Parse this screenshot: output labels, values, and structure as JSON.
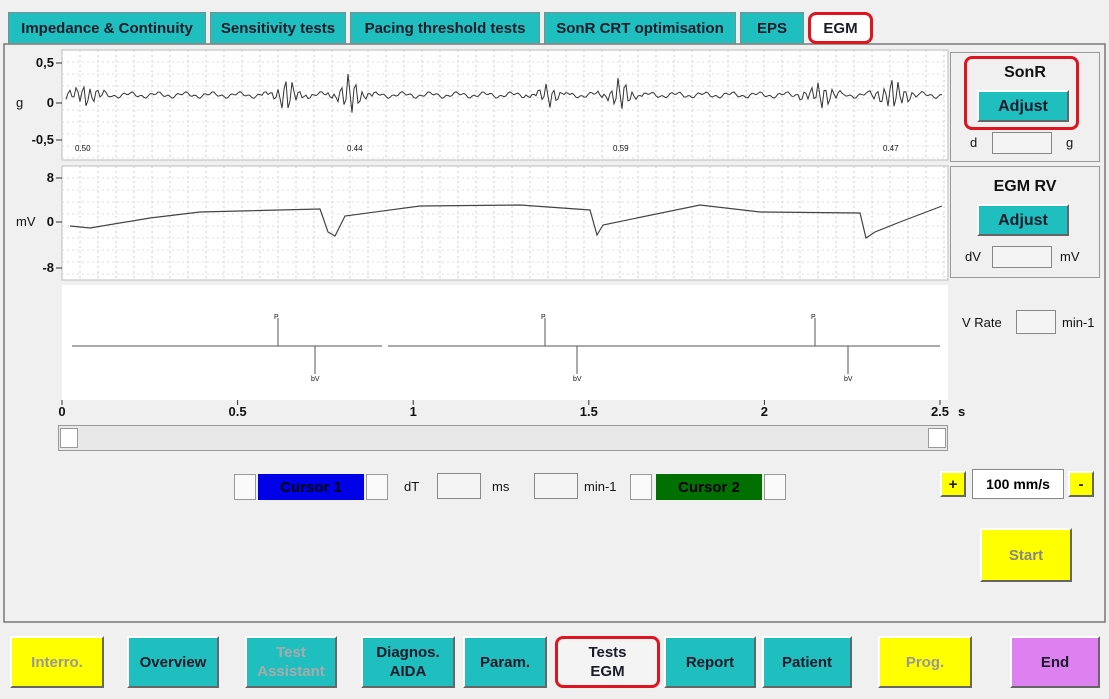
{
  "tabs": [
    "Impedance & Continuity",
    "Sensitivity tests",
    "Pacing threshold tests",
    "SonR CRT optimisation",
    "EPS",
    "EGM"
  ],
  "sonr_trace": {
    "unit": "g",
    "ticks": [
      "0,5",
      "0",
      "-0,5"
    ],
    "annotations": [
      "0.50",
      "0.44",
      "0.59",
      "0.47"
    ]
  },
  "egm_trace": {
    "unit": "mV",
    "ticks": [
      "8",
      "0",
      "-8"
    ]
  },
  "markers": {
    "labels": [
      "P",
      "bV",
      "P",
      "bV",
      "P",
      "bV"
    ]
  },
  "time_axis": {
    "ticks": [
      "0",
      "0.5",
      "1",
      "1.5",
      "2",
      "2.5"
    ],
    "unit": "s"
  },
  "sonr_panel": {
    "title": "SonR",
    "button": "Adjust",
    "left_unit": "d",
    "right_unit": "g"
  },
  "egm_panel": {
    "title": "EGM RV",
    "button": "Adjust",
    "left_unit": "dV",
    "right_unit": "mV"
  },
  "v_rate": {
    "label": "V Rate",
    "unit": "min-1"
  },
  "cursors": {
    "cursor1": "Cursor 1",
    "dt_label": "dT",
    "dt_unit": "ms",
    "rate_unit": "min-1",
    "cursor2": "Cursor 2"
  },
  "speed": {
    "plus": "+",
    "value": "100 mm/s",
    "minus": "-"
  },
  "start": "Start",
  "bottom_buttons": [
    {
      "lines": [
        "Interro."
      ]
    },
    {
      "lines": [
        "Overview"
      ]
    },
    {
      "lines": [
        "Test",
        "Assistant"
      ]
    },
    {
      "lines": [
        "Diagnos.",
        "AIDA"
      ]
    },
    {
      "lines": [
        "Param."
      ]
    },
    {
      "lines": [
        "Tests",
        "EGM"
      ]
    },
    {
      "lines": [
        "Report"
      ]
    },
    {
      "lines": [
        "Patient"
      ]
    },
    {
      "lines": [
        "Prog."
      ]
    },
    {
      "lines": [
        "End"
      ]
    }
  ]
}
